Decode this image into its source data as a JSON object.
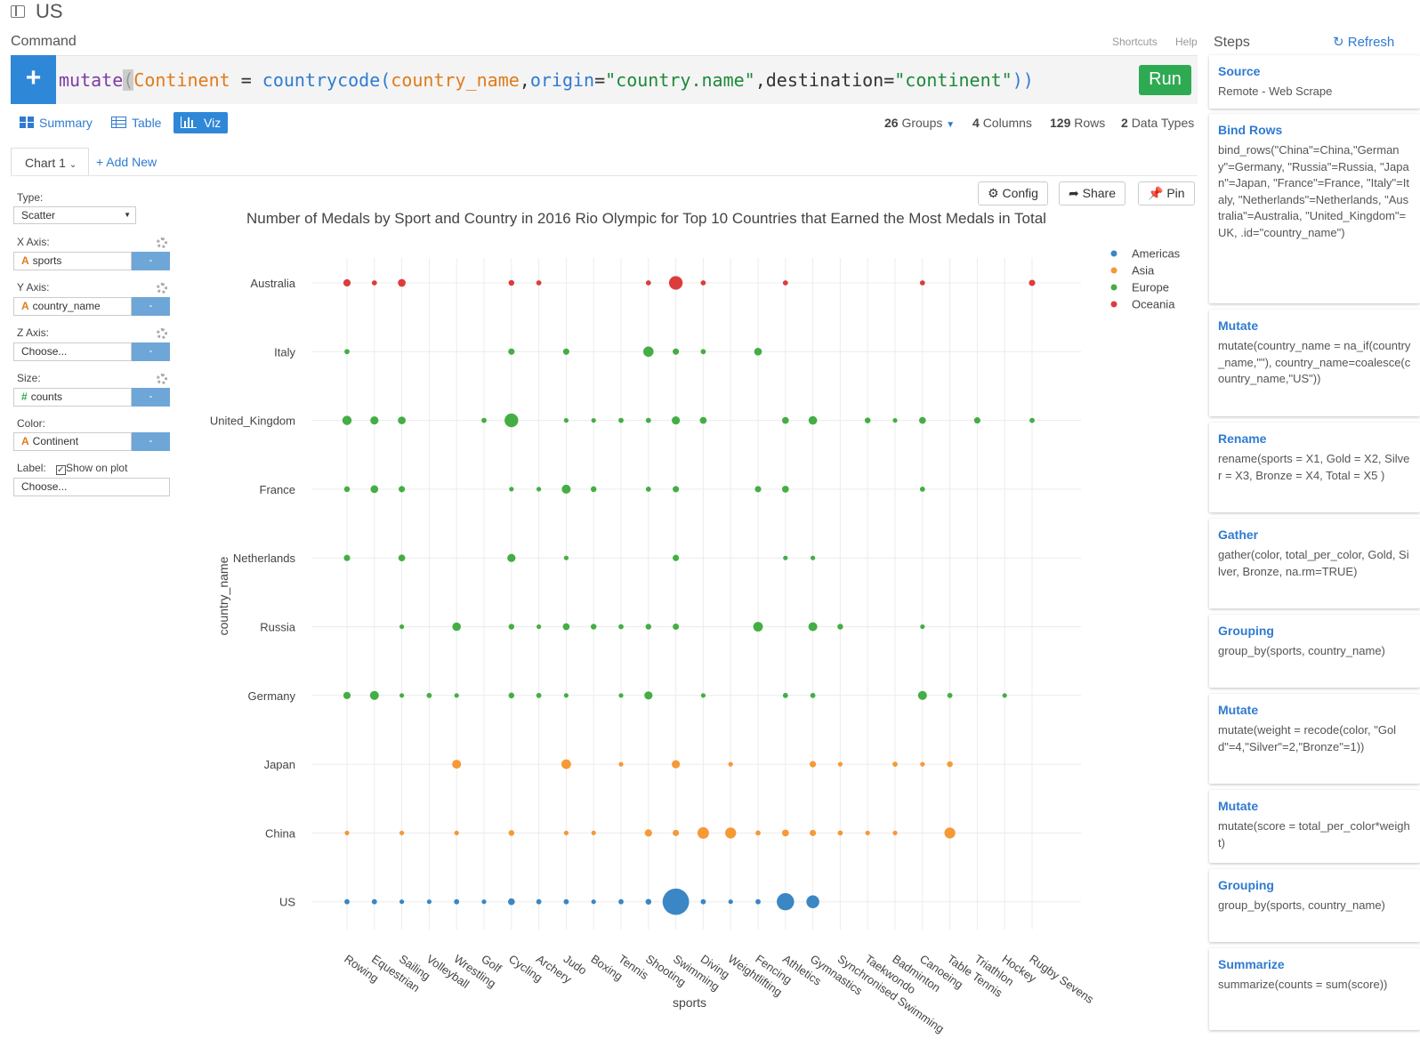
{
  "window": {
    "title": "US"
  },
  "command": {
    "label": "Command",
    "shortcuts": "Shortcuts",
    "help": "Help",
    "add_icon": "+",
    "code": {
      "fn": "mutate",
      "paren_open": "(",
      "lhs": "Continent",
      "eq": " = ",
      "fn2": "countrycode(",
      "arg1": "country_name",
      "comma1": ",",
      "arg2": "origin",
      "eq2": "=",
      "val2": "\"country.name\"",
      "comma2": ",",
      "arg3": "destination",
      "eq3": "=",
      "val3": "\"continent\"",
      "close": "))"
    },
    "run_label": "Run"
  },
  "views": {
    "summary": "Summary",
    "table": "Table",
    "viz": "Viz"
  },
  "stats": {
    "groups_n": "26",
    "groups_label": "Groups",
    "columns_n": "4",
    "columns_label": "Columns",
    "rows_n": "129",
    "rows_label": "Rows",
    "types_n": "2",
    "types_label": "Data Types"
  },
  "chart_tabs": {
    "current": "Chart 1",
    "add_new": "+ Add New"
  },
  "config": {
    "type_label": "Type:",
    "type_value": "Scatter",
    "x_label": "X Axis:",
    "x_value": "sports",
    "y_label": "Y Axis:",
    "y_value": "country_name",
    "z_label": "Z Axis:",
    "z_value": "Choose...",
    "size_label": "Size:",
    "size_value": "counts",
    "color_label": "Color:",
    "color_value": "Continent",
    "label_label": "Label:",
    "show_on_plot": "Show on plot",
    "label_value": "Choose...",
    "minus": "-"
  },
  "chart_buttons": {
    "config": "Config",
    "share": "Share",
    "pin": "Pin"
  },
  "chart_data": {
    "type": "scatter",
    "title": "Number of Medals by Sport and Country in 2016 Rio Olympic for Top 10 Countries that Earned the Most Medals in Total",
    "xlabel": "sports",
    "ylabel": "country_name",
    "x_categories": [
      "Rowing",
      "Equestrian",
      "Sailing",
      "Volleyball",
      "Wrestling",
      "Golf",
      "Cycling",
      "Archery",
      "Judo",
      "Boxing",
      "Tennis",
      "Shooting",
      "Swimming",
      "Diving",
      "Weightlifting",
      "Fencing",
      "Athletics",
      "Gymnastics",
      "Synchronised Swimming",
      "Taekwondo",
      "Badminton",
      "Canoeing",
      "Table Tennis",
      "Triathlon",
      "Hockey",
      "Rugby Sevens"
    ],
    "y_categories": [
      "Australia",
      "Italy",
      "United_Kingdom",
      "France",
      "Netherlands",
      "Russia",
      "Germany",
      "Japan",
      "China",
      "US"
    ],
    "legend": [
      {
        "name": "Americas",
        "color": "#3b86c4"
      },
      {
        "name": "Asia",
        "color": "#f59a36"
      },
      {
        "name": "Europe",
        "color": "#44ae44"
      },
      {
        "name": "Oceania",
        "color": "#dd3c3c"
      }
    ],
    "legend_position": "top-right",
    "grid": true,
    "series": [
      {
        "name": "Oceania",
        "country": "Australia",
        "points": [
          [
            "Rowing",
            8
          ],
          [
            "Equestrian",
            4
          ],
          [
            "Sailing",
            9
          ],
          [
            "Cycling",
            5
          ],
          [
            "Archery",
            4
          ],
          [
            "Shooting",
            4
          ],
          [
            "Swimming",
            28
          ],
          [
            "Diving",
            4
          ],
          [
            "Athletics",
            4
          ],
          [
            "Canoeing",
            4
          ],
          [
            "Rugby Sevens",
            6
          ]
        ]
      },
      {
        "name": "Europe",
        "country": "Italy",
        "points": [
          [
            "Rowing",
            4
          ],
          [
            "Cycling",
            6
          ],
          [
            "Judo",
            6
          ],
          [
            "Shooting",
            16
          ],
          [
            "Swimming",
            6
          ],
          [
            "Diving",
            4
          ],
          [
            "Fencing",
            9
          ]
        ]
      },
      {
        "name": "Europe",
        "country": "United_Kingdom",
        "points": [
          [
            "Rowing",
            13
          ],
          [
            "Equestrian",
            10
          ],
          [
            "Sailing",
            9
          ],
          [
            "Golf",
            4
          ],
          [
            "Cycling",
            28
          ],
          [
            "Judo",
            3
          ],
          [
            "Boxing",
            3
          ],
          [
            "Tennis",
            4
          ],
          [
            "Shooting",
            4
          ],
          [
            "Swimming",
            10
          ],
          [
            "Diving",
            7
          ],
          [
            "Athletics",
            7
          ],
          [
            "Gymnastics",
            11
          ],
          [
            "Taekwondo",
            5
          ],
          [
            "Badminton",
            3
          ],
          [
            "Canoeing",
            7
          ],
          [
            "Triathlon",
            6
          ],
          [
            "Rugby Sevens",
            4
          ]
        ]
      },
      {
        "name": "Europe",
        "country": "France",
        "points": [
          [
            "Rowing",
            5
          ],
          [
            "Equestrian",
            9
          ],
          [
            "Sailing",
            6
          ],
          [
            "Cycling",
            3
          ],
          [
            "Archery",
            3
          ],
          [
            "Judo",
            12
          ],
          [
            "Boxing",
            5
          ],
          [
            "Shooting",
            4
          ],
          [
            "Swimming",
            6
          ],
          [
            "Fencing",
            6
          ],
          [
            "Athletics",
            7
          ],
          [
            "Canoeing",
            4
          ]
        ]
      },
      {
        "name": "Europe",
        "country": "Netherlands",
        "points": [
          [
            "Rowing",
            6
          ],
          [
            "Sailing",
            7
          ],
          [
            "Cycling",
            10
          ],
          [
            "Judo",
            3
          ],
          [
            "Swimming",
            6
          ],
          [
            "Athletics",
            3
          ],
          [
            "Gymnastics",
            3
          ]
        ]
      },
      {
        "name": "Europe",
        "country": "Russia",
        "points": [
          [
            "Sailing",
            3
          ],
          [
            "Wrestling",
            11
          ],
          [
            "Cycling",
            5
          ],
          [
            "Archery",
            3
          ],
          [
            "Judo",
            7
          ],
          [
            "Boxing",
            5
          ],
          [
            "Tennis",
            4
          ],
          [
            "Shooting",
            5
          ],
          [
            "Swimming",
            6
          ],
          [
            "Fencing",
            14
          ],
          [
            "Gymnastics",
            12
          ],
          [
            "Synchronised Swimming",
            5
          ],
          [
            "Canoeing",
            3
          ]
        ]
      },
      {
        "name": "Europe",
        "country": "Germany",
        "points": [
          [
            "Rowing",
            8
          ],
          [
            "Equestrian",
            12
          ],
          [
            "Sailing",
            3
          ],
          [
            "Volleyball",
            4
          ],
          [
            "Wrestling",
            3
          ],
          [
            "Cycling",
            5
          ],
          [
            "Archery",
            4
          ],
          [
            "Judo",
            3
          ],
          [
            "Tennis",
            3
          ],
          [
            "Shooting",
            10
          ],
          [
            "Diving",
            3
          ],
          [
            "Athletics",
            4
          ],
          [
            "Gymnastics",
            4
          ],
          [
            "Canoeing",
            12
          ],
          [
            "Table Tennis",
            4
          ],
          [
            "Hockey",
            3
          ]
        ]
      },
      {
        "name": "Asia",
        "country": "Japan",
        "points": [
          [
            "Wrestling",
            12
          ],
          [
            "Judo",
            14
          ],
          [
            "Tennis",
            3
          ],
          [
            "Swimming",
            10
          ],
          [
            "Weightlifting",
            3
          ],
          [
            "Gymnastics",
            6
          ],
          [
            "Synchronised Swimming",
            3
          ],
          [
            "Badminton",
            4
          ],
          [
            "Canoeing",
            3
          ],
          [
            "Table Tennis",
            5
          ]
        ]
      },
      {
        "name": "Asia",
        "country": "China",
        "points": [
          [
            "Rowing",
            3
          ],
          [
            "Sailing",
            3
          ],
          [
            "Wrestling",
            3
          ],
          [
            "Cycling",
            5
          ],
          [
            "Judo",
            3
          ],
          [
            "Boxing",
            3
          ],
          [
            "Shooting",
            8
          ],
          [
            "Swimming",
            6
          ],
          [
            "Diving",
            20
          ],
          [
            "Weightlifting",
            18
          ],
          [
            "Fencing",
            4
          ],
          [
            "Athletics",
            7
          ],
          [
            "Gymnastics",
            6
          ],
          [
            "Synchronised Swimming",
            4
          ],
          [
            "Taekwondo",
            3
          ],
          [
            "Badminton",
            3
          ],
          [
            "Table Tennis",
            18
          ]
        ]
      },
      {
        "name": "Americas",
        "country": "US",
        "points": [
          [
            "Rowing",
            4
          ],
          [
            "Equestrian",
            4
          ],
          [
            "Sailing",
            3
          ],
          [
            "Volleyball",
            3
          ],
          [
            "Wrestling",
            4
          ],
          [
            "Golf",
            3
          ],
          [
            "Cycling",
            7
          ],
          [
            "Archery",
            4
          ],
          [
            "Judo",
            4
          ],
          [
            "Boxing",
            3
          ],
          [
            "Tennis",
            4
          ],
          [
            "Shooting",
            5
          ],
          [
            "Swimming",
            105
          ],
          [
            "Diving",
            4
          ],
          [
            "Weightlifting",
            3
          ],
          [
            "Fencing",
            4
          ],
          [
            "Athletics",
            45
          ],
          [
            "Gymnastics",
            25
          ]
        ]
      }
    ]
  },
  "steps_panel": {
    "title": "Steps",
    "refresh": "Refresh",
    "items": [
      {
        "title": "Source",
        "desc": "Remote - Web Scrape"
      },
      {
        "title": "Bind Rows",
        "desc": "bind_rows(\"China\"=China,\"Germany\"=Germany, \"Russia\"=Russia, \"Japan\"=Japan, \"France\"=France, \"Italy\"=Italy, \"Netherlands\"=Netherlands, \"Australia\"=Australia, \"United_Kingdom\"=UK, .id=\"country_name\")"
      },
      {
        "title": "Mutate",
        "desc": "mutate(country_name = na_if(country_name,\"\"), country_name=coalesce(country_name,\"US\"))"
      },
      {
        "title": "Rename",
        "desc": "rename(sports = X1, Gold = X2, Silver = X3, Bronze = X4, Total = X5 )"
      },
      {
        "title": "Gather",
        "desc": "gather(color, total_per_color, Gold, Silver, Bronze, na.rm=TRUE)"
      },
      {
        "title": "Grouping",
        "desc": "group_by(sports, country_name)"
      },
      {
        "title": "Mutate",
        "desc": "mutate(weight = recode(color, \"Gold\"=4,\"Silver\"=2,\"Bronze\"=1))"
      },
      {
        "title": "Mutate",
        "desc": "mutate(score = total_per_color*weight)"
      },
      {
        "title": "Grouping",
        "desc": "group_by(sports, country_name)"
      },
      {
        "title": "Summarize",
        "desc": "summarize(counts = sum(score))"
      }
    ]
  }
}
